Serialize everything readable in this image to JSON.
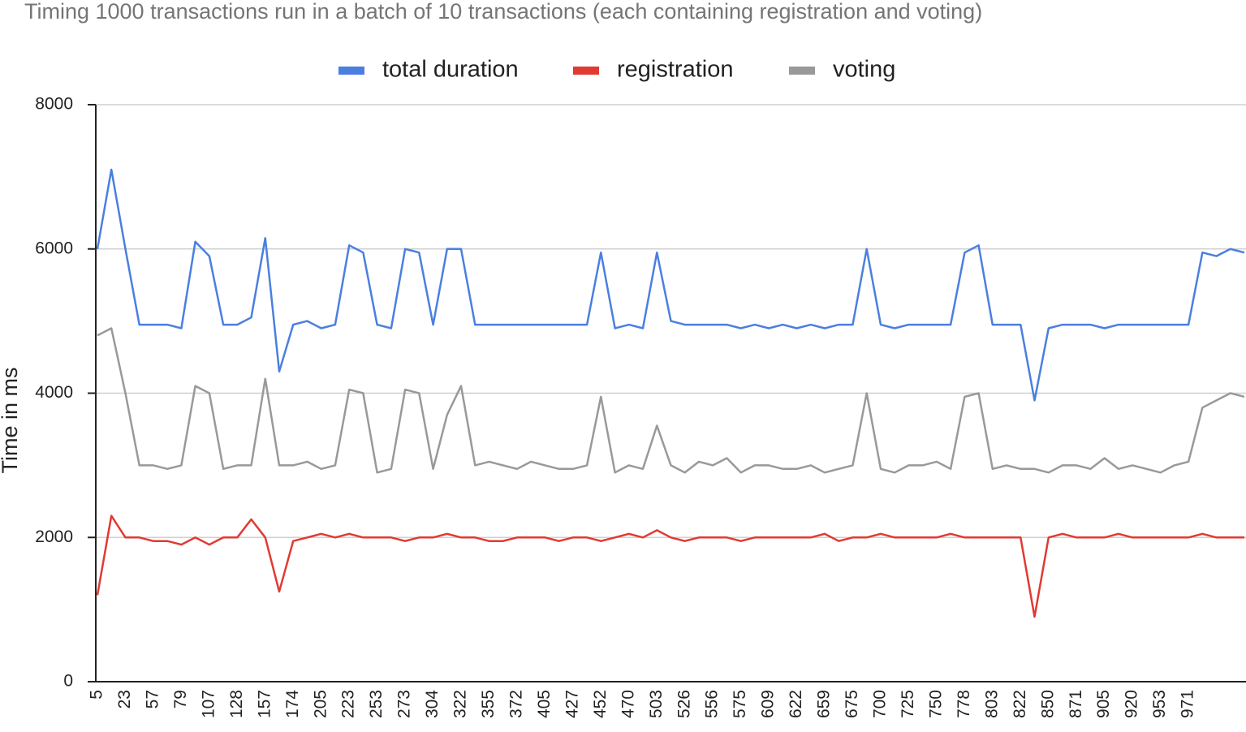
{
  "chart_data": {
    "type": "line",
    "title": "Timing 1000 transactions run in a batch of 10 transactions (each containing registration and voting)",
    "y_label": "Time in ms",
    "categories": [
      5,
      null,
      23,
      null,
      57,
      null,
      79,
      null,
      107,
      null,
      128,
      null,
      157,
      null,
      174,
      null,
      205,
      null,
      223,
      null,
      253,
      null,
      273,
      null,
      304,
      null,
      322,
      null,
      355,
      null,
      372,
      null,
      405,
      null,
      427,
      null,
      452,
      null,
      470,
      null,
      503,
      null,
      526,
      null,
      556,
      null,
      575,
      null,
      609,
      null,
      622,
      null,
      659,
      null,
      675,
      null,
      700,
      null,
      725,
      null,
      750,
      null,
      778,
      null,
      803,
      null,
      822,
      null,
      850,
      null,
      871,
      null,
      905,
      null,
      920,
      null,
      953,
      null,
      971,
      null,
      null,
      null,
      null
    ],
    "series": [
      {
        "name": "total duration",
        "color": "#4a7fe0",
        "values": [
          6000,
          7100,
          6000,
          4950,
          4950,
          4950,
          4900,
          6100,
          5900,
          4950,
          4950,
          5050,
          6150,
          4300,
          4950,
          5000,
          4900,
          4950,
          6050,
          5950,
          4950,
          4900,
          6000,
          5950,
          4950,
          6000,
          6000,
          4950,
          4950,
          4950,
          4950,
          4950,
          4950,
          4950,
          4950,
          4950,
          5950,
          4900,
          4950,
          4900,
          5950,
          5000,
          4950,
          4950,
          4950,
          4950,
          4900,
          4950,
          4900,
          4950,
          4900,
          4950,
          4900,
          4950,
          4950,
          6000,
          4950,
          4900,
          4950,
          4950,
          4950,
          4950,
          5950,
          6050,
          4950,
          4950,
          4950,
          3900,
          4900,
          4950,
          4950,
          4950,
          4900,
          4950,
          4950,
          4950,
          4950,
          4950,
          4950,
          5950,
          5900,
          6000,
          5950
        ]
      },
      {
        "name": "registration",
        "color": "#e03a33",
        "values": [
          1200,
          2300,
          2000,
          2000,
          1950,
          1950,
          1900,
          2000,
          1900,
          2000,
          2000,
          2250,
          2000,
          1250,
          1950,
          2000,
          2050,
          2000,
          2050,
          2000,
          2000,
          2000,
          1950,
          2000,
          2000,
          2050,
          2000,
          2000,
          1950,
          1950,
          2000,
          2000,
          2000,
          1950,
          2000,
          2000,
          1950,
          2000,
          2050,
          2000,
          2100,
          2000,
          1950,
          2000,
          2000,
          2000,
          1950,
          2000,
          2000,
          2000,
          2000,
          2000,
          2050,
          1950,
          2000,
          2000,
          2050,
          2000,
          2000,
          2000,
          2000,
          2050,
          2000,
          2000,
          2000,
          2000,
          2000,
          900,
          2000,
          2050,
          2000,
          2000,
          2000,
          2050,
          2000,
          2000,
          2000,
          2000,
          2000,
          2050,
          2000,
          2000,
          2000
        ]
      },
      {
        "name": "voting",
        "color": "#999999",
        "values": [
          4800,
          4900,
          4000,
          3000,
          3000,
          2950,
          3000,
          4100,
          4000,
          2950,
          3000,
          3000,
          4200,
          3000,
          3000,
          3050,
          2950,
          3000,
          4050,
          4000,
          2900,
          2950,
          4050,
          4000,
          2950,
          3700,
          4100,
          3000,
          3050,
          3000,
          2950,
          3050,
          3000,
          2950,
          2950,
          3000,
          3950,
          2900,
          3000,
          2950,
          3550,
          3000,
          2900,
          3050,
          3000,
          3100,
          2900,
          3000,
          3000,
          2950,
          2950,
          3000,
          2900,
          2950,
          3000,
          4000,
          2950,
          2900,
          3000,
          3000,
          3050,
          2950,
          3950,
          4000,
          2950,
          3000,
          2950,
          2950,
          2900,
          3000,
          3000,
          2950,
          3100,
          2950,
          3000,
          2950,
          2900,
          3000,
          3050,
          3800,
          3900,
          4000,
          3950
        ]
      }
    ],
    "ylim": [
      0,
      8000
    ],
    "yticks": [
      0,
      2000,
      4000,
      6000,
      8000
    ],
    "grid": true,
    "legend": "top"
  }
}
